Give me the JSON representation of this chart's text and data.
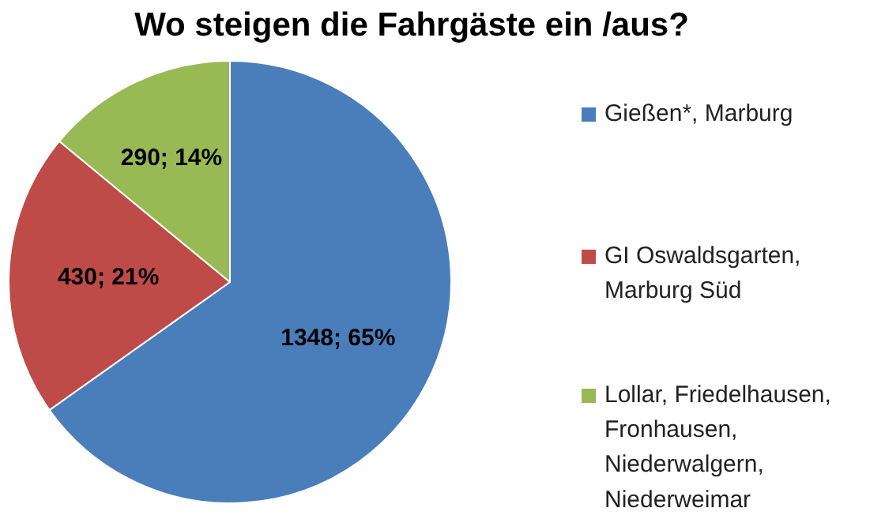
{
  "chart_data": {
    "type": "pie",
    "title": "Wo steigen die Fahrgäste ein /aus?",
    "categories": [
      "Gießen*, Marburg",
      "GI Oswaldsgarten, Marburg Süd",
      "Lollar, Friedelhausen, Fronhausen, Niederwalgern, Niederweimar"
    ],
    "values": [
      1348,
      430,
      290
    ],
    "colors": [
      "#4a7ebb",
      "#be4b48",
      "#98b954"
    ],
    "value_labels": [
      "1348; 65%",
      "430; 21%",
      "290; 14%"
    ],
    "legend": "right"
  }
}
